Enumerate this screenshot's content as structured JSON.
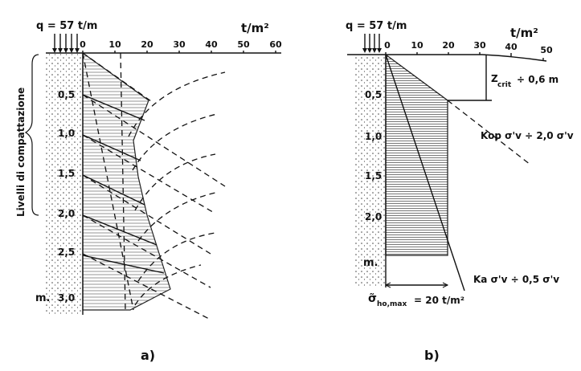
{
  "panel_a": {
    "load_label": "q = 57  t/m",
    "unit_label": "t/m²",
    "top_ticks": [
      "0",
      "10",
      "20",
      "30",
      "40",
      "50",
      "60"
    ],
    "depth_ticks": [
      "0,5",
      "1,0",
      "1,5",
      "2,0",
      "2,5",
      "3,0"
    ],
    "depth_unit": "m.",
    "side_label": "Livelli di compattazione",
    "caption": "a)"
  },
  "panel_b": {
    "load_label": "q = 57 t/m",
    "unit_label": "t/m²",
    "top_ticks": [
      "0",
      "10",
      "20",
      "30",
      "40",
      "50"
    ],
    "depth_ticks": [
      "0,5",
      "1,0",
      "1,5",
      "2,0"
    ],
    "depth_unit": "m.",
    "zcrit_label": "Z",
    "zcrit_sub": "crit",
    "zcrit_value": "÷ 0,6 m",
    "kop_label": "Kop σ'v ÷ 2,0 σ'v",
    "ka_label": "Ka σ'v ÷ 0,5 σ'v",
    "sigma_label": "σ̃",
    "sigma_sub": "ho,max",
    "sigma_value": "= 20 t/m²",
    "caption": "b)"
  }
}
